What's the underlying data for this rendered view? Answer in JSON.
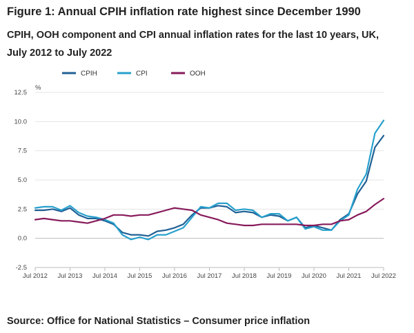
{
  "title": "Figure 1: Annual CPIH inflation rate highest since December 1990",
  "subtitle": "CPIH, OOH component and CPI annual inflation rates for the last 10 years, UK, July 2012 to July 2022",
  "source": "Source: Office for National Statistics – Consumer price inflation",
  "chart_data": {
    "type": "line",
    "yunit": "%",
    "ylim": [
      -2.5,
      12.5
    ],
    "yticks": [
      -2.5,
      0.0,
      2.5,
      5.0,
      7.5,
      10.0,
      12.5
    ],
    "ytick_labels": [
      "-2.5",
      "0.0",
      "2.5",
      "5.0",
      "7.5",
      "10.0",
      "12.5"
    ],
    "xlim": [
      "Jul 2012",
      "Jul 2022"
    ],
    "xtick_labels": [
      "Jul 2012",
      "Jul 2013",
      "Jul 2014",
      "Jul 2015",
      "Jul 2016",
      "Jul 2017",
      "Jul 2018",
      "Jul 2019",
      "Jul 2020",
      "Jul 2021",
      "Jul 2022"
    ],
    "grid": "horizontal",
    "legend_position": "top-left",
    "series": [
      {
        "name": "CPIH",
        "color": "#206095",
        "points": [
          [
            "Jul 2012",
            2.4
          ],
          [
            "Oct 2012",
            2.4
          ],
          [
            "Jan 2013",
            2.5
          ],
          [
            "Apr 2013",
            2.3
          ],
          [
            "Jul 2013",
            2.6
          ],
          [
            "Oct 2013",
            2.0
          ],
          [
            "Jan 2014",
            1.7
          ],
          [
            "Apr 2014",
            1.7
          ],
          [
            "Jul 2014",
            1.5
          ],
          [
            "Oct 2014",
            1.2
          ],
          [
            "Jan 2015",
            0.5
          ],
          [
            "Apr 2015",
            0.3
          ],
          [
            "Jul 2015",
            0.3
          ],
          [
            "Oct 2015",
            0.2
          ],
          [
            "Jan 2016",
            0.6
          ],
          [
            "Apr 2016",
            0.7
          ],
          [
            "Jul 2016",
            0.9
          ],
          [
            "Oct 2016",
            1.2
          ],
          [
            "Jan 2017",
            2.0
          ],
          [
            "Apr 2017",
            2.6
          ],
          [
            "Jul 2017",
            2.6
          ],
          [
            "Oct 2017",
            2.8
          ],
          [
            "Jan 2018",
            2.7
          ],
          [
            "Apr 2018",
            2.2
          ],
          [
            "Jul 2018",
            2.3
          ],
          [
            "Oct 2018",
            2.2
          ],
          [
            "Jan 2019",
            1.8
          ],
          [
            "Apr 2019",
            2.0
          ],
          [
            "Jul 2019",
            1.9
          ],
          [
            "Oct 2019",
            1.5
          ],
          [
            "Jan 2020",
            1.8
          ],
          [
            "Apr 2020",
            0.9
          ],
          [
            "Jul 2020",
            1.1
          ],
          [
            "Oct 2020",
            0.9
          ],
          [
            "Jan 2021",
            0.7
          ],
          [
            "Apr 2021",
            1.6
          ],
          [
            "Jul 2021",
            2.1
          ],
          [
            "Oct 2021",
            3.8
          ],
          [
            "Jan 2022",
            4.9
          ],
          [
            "Apr 2022",
            7.8
          ],
          [
            "Jul 2022",
            8.8
          ]
        ]
      },
      {
        "name": "CPI",
        "color": "#27a0cc",
        "points": [
          [
            "Jul 2012",
            2.6
          ],
          [
            "Oct 2012",
            2.7
          ],
          [
            "Jan 2013",
            2.7
          ],
          [
            "Apr 2013",
            2.4
          ],
          [
            "Jul 2013",
            2.8
          ],
          [
            "Oct 2013",
            2.2
          ],
          [
            "Jan 2014",
            1.9
          ],
          [
            "Apr 2014",
            1.8
          ],
          [
            "Jul 2014",
            1.6
          ],
          [
            "Oct 2014",
            1.3
          ],
          [
            "Jan 2015",
            0.3
          ],
          [
            "Apr 2015",
            -0.1
          ],
          [
            "Jul 2015",
            0.1
          ],
          [
            "Oct 2015",
            -0.1
          ],
          [
            "Jan 2016",
            0.3
          ],
          [
            "Apr 2016",
            0.3
          ],
          [
            "Jul 2016",
            0.6
          ],
          [
            "Oct 2016",
            0.9
          ],
          [
            "Jan 2017",
            1.8
          ],
          [
            "Apr 2017",
            2.7
          ],
          [
            "Jul 2017",
            2.6
          ],
          [
            "Oct 2017",
            3.0
          ],
          [
            "Jan 2018",
            3.0
          ],
          [
            "Apr 2018",
            2.4
          ],
          [
            "Jul 2018",
            2.5
          ],
          [
            "Oct 2018",
            2.4
          ],
          [
            "Jan 2019",
            1.8
          ],
          [
            "Apr 2019",
            2.1
          ],
          [
            "Jul 2019",
            2.1
          ],
          [
            "Oct 2019",
            1.5
          ],
          [
            "Jan 2020",
            1.8
          ],
          [
            "Apr 2020",
            0.8
          ],
          [
            "Jul 2020",
            1.0
          ],
          [
            "Oct 2020",
            0.7
          ],
          [
            "Jan 2021",
            0.7
          ],
          [
            "Apr 2021",
            1.5
          ],
          [
            "Jul 2021",
            2.0
          ],
          [
            "Oct 2021",
            4.2
          ],
          [
            "Jan 2022",
            5.5
          ],
          [
            "Apr 2022",
            9.0
          ],
          [
            "Jul 2022",
            10.1
          ]
        ]
      },
      {
        "name": "OOH",
        "color": "#871a5b",
        "points": [
          [
            "Jul 2012",
            1.6
          ],
          [
            "Oct 2012",
            1.7
          ],
          [
            "Jan 2013",
            1.6
          ],
          [
            "Apr 2013",
            1.5
          ],
          [
            "Jul 2013",
            1.5
          ],
          [
            "Oct 2013",
            1.4
          ],
          [
            "Jan 2014",
            1.3
          ],
          [
            "Apr 2014",
            1.5
          ],
          [
            "Jul 2014",
            1.7
          ],
          [
            "Oct 2014",
            2.0
          ],
          [
            "Jan 2015",
            2.0
          ],
          [
            "Apr 2015",
            1.9
          ],
          [
            "Jul 2015",
            2.0
          ],
          [
            "Oct 2015",
            2.0
          ],
          [
            "Jan 2016",
            2.2
          ],
          [
            "Apr 2016",
            2.4
          ],
          [
            "Jul 2016",
            2.6
          ],
          [
            "Oct 2016",
            2.5
          ],
          [
            "Jan 2017",
            2.4
          ],
          [
            "Apr 2017",
            2.0
          ],
          [
            "Jul 2017",
            1.8
          ],
          [
            "Oct 2017",
            1.6
          ],
          [
            "Jan 2018",
            1.3
          ],
          [
            "Apr 2018",
            1.2
          ],
          [
            "Jul 2018",
            1.1
          ],
          [
            "Oct 2018",
            1.1
          ],
          [
            "Jan 2019",
            1.2
          ],
          [
            "Apr 2019",
            1.2
          ],
          [
            "Jul 2019",
            1.2
          ],
          [
            "Oct 2019",
            1.2
          ],
          [
            "Jan 2020",
            1.2
          ],
          [
            "Apr 2020",
            1.1
          ],
          [
            "Jul 2020",
            1.1
          ],
          [
            "Oct 2020",
            1.2
          ],
          [
            "Jan 2021",
            1.2
          ],
          [
            "Apr 2021",
            1.5
          ],
          [
            "Jul 2021",
            1.6
          ],
          [
            "Oct 2021",
            2.0
          ],
          [
            "Jan 2022",
            2.3
          ],
          [
            "Apr 2022",
            2.9
          ],
          [
            "Jul 2022",
            3.4
          ]
        ]
      }
    ]
  }
}
